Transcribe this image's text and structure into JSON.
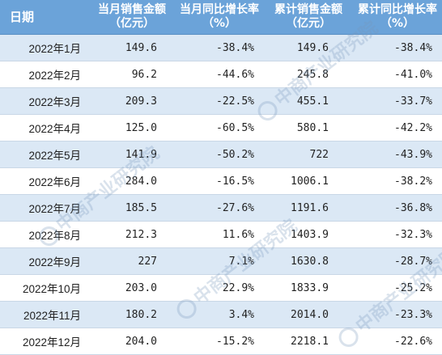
{
  "columns": [
    "日期",
    "当月销售金额（亿元）",
    "当月同比增长率（%）",
    "累计销售金额（亿元）",
    "累计同比增长率（%）"
  ],
  "rows": [
    [
      "2022年1月",
      "149.6",
      "-38.4%",
      "149.6",
      "-38.4%"
    ],
    [
      "2022年2月",
      "96.2",
      "-44.6%",
      "245.8",
      "-41.0%"
    ],
    [
      "2022年3月",
      "209.3",
      "-22.5%",
      "455.1",
      "-33.7%"
    ],
    [
      "2022年4月",
      "125.0",
      "-60.5%",
      "580.1",
      "-42.2%"
    ],
    [
      "2022年5月",
      "141.9",
      "-50.2%",
      "722",
      "-43.9%"
    ],
    [
      "2022年6月",
      "284.0",
      "-16.5%",
      "1006.1",
      "-38.2%"
    ],
    [
      "2022年7月",
      "185.5",
      "-27.6%",
      "1191.6",
      "-36.8%"
    ],
    [
      "2022年8月",
      "212.3",
      "11.6%",
      "1403.9",
      "-32.3%"
    ],
    [
      "2022年9月",
      "227",
      "7.1%",
      "1630.8",
      "-28.7%"
    ],
    [
      "2022年10月",
      "203.0",
      "22.9%",
      "1833.9",
      "-25.2%"
    ],
    [
      "2022年11月",
      "180.2",
      "3.4%",
      "2014.0",
      "-23.3%"
    ],
    [
      "2022年12月",
      "204.0",
      "-15.2%",
      "2218.1",
      "-22.6%"
    ]
  ],
  "watermark": "中商产业研究院",
  "colors": {
    "header_bg": "#6ba3d9",
    "stripe": "#dbe8f5",
    "text": "#222222"
  }
}
